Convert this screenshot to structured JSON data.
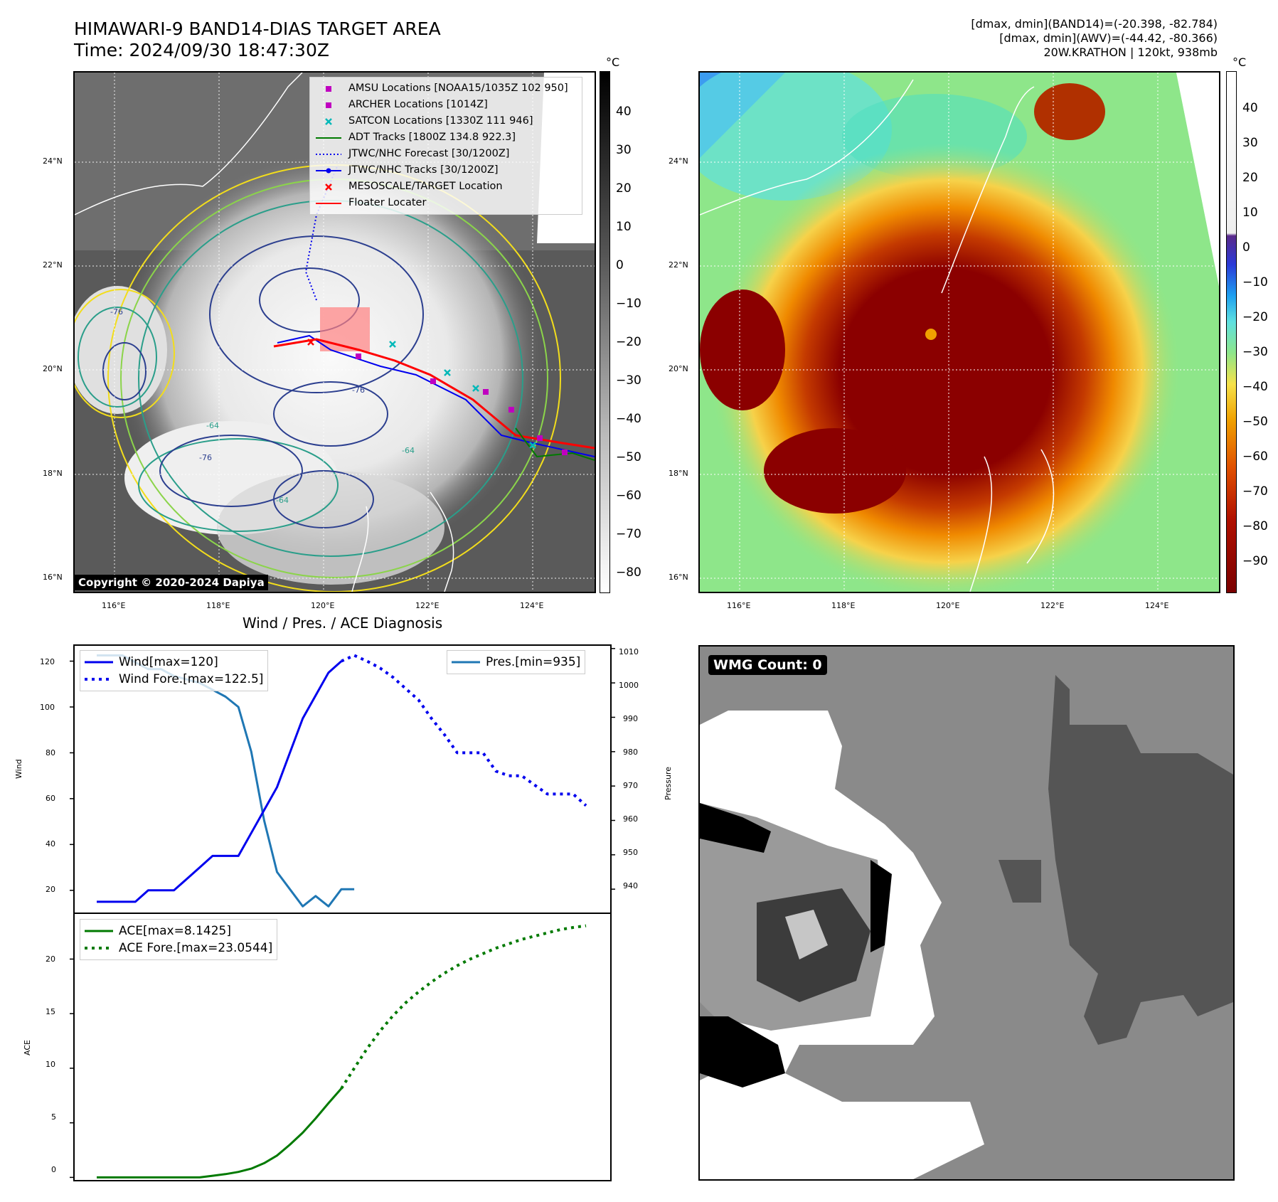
{
  "header": {
    "title_line1": "HIMAWARI-9 BAND14-DIAS TARGET AREA",
    "title_line2": "Time: 2024/09/30 18:47:30Z",
    "right_line1": "[dmax, dmin](BAND14)=(-20.398, -82.784)",
    "right_line2": "[dmax, dmin](AWV)=(-44.42, -80.366)",
    "right_line3": "20W.KRATHON | 120kt, 938mb"
  },
  "map": {
    "lat_labels": [
      "24°N",
      "22°N",
      "20°N",
      "18°N",
      "16°N"
    ],
    "lon_labels": [
      "116°E",
      "118°E",
      "120°E",
      "122°E",
      "124°E"
    ],
    "copyright": "Copyright © 2020-2024 Dapiya",
    "contour_labels": [
      "-76",
      "-76",
      "-76",
      "-64",
      "-64",
      "-64"
    ],
    "legend": [
      {
        "label": "AMSU Locations [NOAA15/1035Z 102 950]",
        "color": "#c000c0",
        "symbol": "square"
      },
      {
        "label": "ARCHER Locations [1014Z]",
        "color": "#c000c0",
        "symbol": "square"
      },
      {
        "label": "SATCON Locations [1330Z 111 946]",
        "color": "#00b8b8",
        "symbol": "x"
      },
      {
        "label": "ADT Tracks [1800Z 134.8 922.3]",
        "color": "#007a00",
        "symbol": "line"
      },
      {
        "label": "JTWC/NHC Forecast [30/1200Z]",
        "color": "#0000ee",
        "symbol": "dotted"
      },
      {
        "label": "JTWC/NHC Tracks [30/1200Z]",
        "color": "#0000ee",
        "symbol": "line-dot"
      },
      {
        "label": "MESOSCALE/TARGET Location",
        "color": "#ff0000",
        "symbol": "x"
      },
      {
        "label": "Floater Locater",
        "color": "#ff0000",
        "symbol": "line"
      }
    ],
    "colorbar_left": {
      "unit": "°C",
      "ticks": [
        "40",
        "30",
        "20",
        "10",
        "0",
        "−10",
        "−20",
        "−30",
        "−40",
        "−50",
        "−60",
        "−70",
        "−80"
      ]
    },
    "colorbar_right": {
      "unit": "°C",
      "ticks": [
        "40",
        "30",
        "20",
        "10",
        "0",
        "−10",
        "−20",
        "−30",
        "−40",
        "−50",
        "−60",
        "−70",
        "−80",
        "−90"
      ]
    }
  },
  "diag": {
    "title": "Wind / Pres. / ACE Diagnosis",
    "wind_ylabel": "Wind",
    "pres_ylabel": "Pressure",
    "ace_ylabel": "ACE",
    "wind_ticks": [
      "120",
      "100",
      "80",
      "60",
      "40",
      "20"
    ],
    "pres_ticks": [
      "1010",
      "1000",
      "990",
      "980",
      "970",
      "960",
      "950",
      "940"
    ],
    "ace_ticks": [
      "20",
      "15",
      "10",
      "5",
      "0"
    ],
    "legend_wind": "Wind[max=120]",
    "legend_wind_fore": "Wind Fore.[max=122.5]",
    "legend_pres": "Pres.[min=935]",
    "legend_ace": "ACE[max=8.1425]",
    "legend_ace_fore": "ACE Fore.[max=23.0544]"
  },
  "wmg": {
    "label": "WMG Count: 0"
  },
  "chart_data": [
    {
      "type": "line",
      "title": "Wind / Pres. / ACE Diagnosis",
      "ylabel": "Wind",
      "ylim": [
        10,
        127
      ],
      "series": [
        {
          "name": "Wind[max=120]",
          "color": "#0000ee",
          "x": [
            0,
            1,
            2,
            3,
            4,
            5,
            6,
            7,
            8,
            9,
            10,
            11,
            12,
            13,
            14,
            15,
            16,
            17,
            18,
            19
          ],
          "y": [
            15,
            15,
            15,
            15,
            20,
            20,
            20,
            25,
            30,
            35,
            35,
            35,
            45,
            55,
            65,
            80,
            95,
            105,
            115,
            120
          ]
        },
        {
          "name": "Wind Fore.[max=122.5]",
          "color": "#0000ee",
          "style": "dotted",
          "x": [
            19,
            20,
            21,
            22,
            23,
            24,
            25,
            26,
            27,
            28,
            29,
            30,
            31,
            32,
            33,
            34,
            35,
            36,
            37,
            38
          ],
          "y": [
            120,
            122.5,
            120,
            117,
            113,
            108,
            103,
            95,
            88,
            80,
            80,
            80,
            72,
            70,
            70,
            66,
            62,
            62,
            62,
            57
          ]
        }
      ]
    },
    {
      "type": "line",
      "ylabel": "Pressure",
      "ylim": [
        933,
        1011
      ],
      "series": [
        {
          "name": "Pres.[min=935]",
          "color": "#1f77b4",
          "x": [
            0,
            1,
            2,
            3,
            4,
            5,
            6,
            7,
            8,
            9,
            10,
            11,
            12,
            13,
            14,
            15,
            16,
            17,
            18,
            19,
            20
          ],
          "y": [
            1008,
            1008,
            1008,
            1006,
            1004,
            1004,
            1002,
            1001,
            1000,
            998,
            996,
            993,
            980,
            960,
            945,
            940,
            935,
            938,
            935,
            940,
            940
          ]
        }
      ]
    },
    {
      "type": "line",
      "ylabel": "ACE",
      "ylim": [
        -0.3,
        24.2
      ],
      "series": [
        {
          "name": "ACE[max=8.1425]",
          "color": "#007a00",
          "x": [
            0,
            2,
            4,
            6,
            8,
            9,
            10,
            11,
            12,
            13,
            14,
            15,
            16,
            17,
            18,
            19
          ],
          "y": [
            0,
            0,
            0,
            0,
            0,
            0.15,
            0.3,
            0.5,
            0.8,
            1.3,
            2.0,
            3.0,
            4.1,
            5.4,
            6.8,
            8.1425
          ]
        },
        {
          "name": "ACE Fore.[max=23.0544]",
          "color": "#007a00",
          "style": "dotted",
          "x": [
            19,
            20,
            21,
            22,
            23,
            24,
            25,
            26,
            27,
            28,
            29,
            30,
            31,
            32,
            33,
            34,
            35,
            36,
            37,
            38
          ],
          "y": [
            8.1425,
            10.0,
            11.8,
            13.4,
            14.8,
            16.0,
            17.0,
            17.9,
            18.7,
            19.4,
            20.0,
            20.5,
            21.0,
            21.4,
            21.8,
            22.1,
            22.4,
            22.7,
            22.9,
            23.0544
          ]
        }
      ]
    }
  ]
}
